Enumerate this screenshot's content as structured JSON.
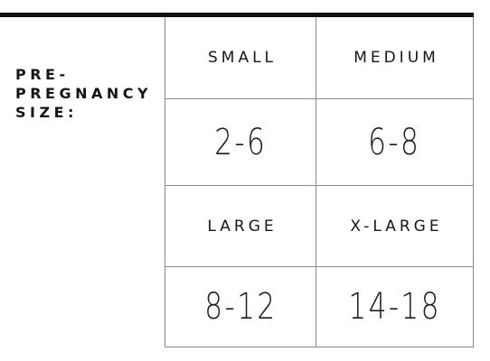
{
  "label": {
    "text": "PRE-\nPREGNANCY\nSIZE:"
  },
  "sizes": [
    {
      "name": "SMALL",
      "range": "2-6"
    },
    {
      "name": "MEDIUM",
      "range": "6-8"
    },
    {
      "name": "LARGE",
      "range": "8-12"
    },
    {
      "name": "X-LARGE",
      "range": "14-18"
    }
  ],
  "colors": {
    "text": "#1a1a1a",
    "rule": "#111111",
    "grid_line": "#8a8a8a",
    "background": "#ffffff"
  }
}
